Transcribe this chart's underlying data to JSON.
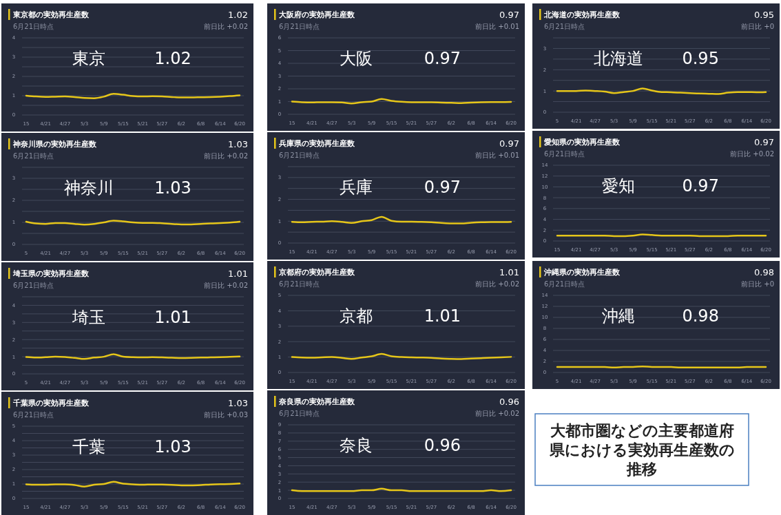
{
  "chart_data": [
    {
      "type": "line",
      "title": "東京都の実効再生産数",
      "subtitle": "6月21日時点",
      "annotations": [
        "1.02",
        "前日比 +0.02",
        "東京",
        "1.02"
      ],
      "categories": [
        "15",
        null,
        "4/21",
        null,
        "4/27",
        null,
        "5/3",
        null,
        "5/9",
        null,
        "5/15",
        null,
        "5/21",
        null,
        "5/27",
        null,
        "6/2",
        null,
        "6/8",
        null,
        "6/14",
        null,
        "6/20"
      ],
      "color": "#e6c619",
      "values": [
        1.0,
        0.96,
        0.94,
        0.95,
        0.96,
        0.93,
        0.88,
        0.87,
        0.95,
        1.1,
        1.05,
        0.98,
        0.96,
        0.97,
        0.96,
        0.93,
        0.91,
        0.91,
        0.92,
        0.93,
        0.95,
        0.98,
        1.02
      ],
      "ylim": [
        0,
        4
      ],
      "yticks": [
        0,
        {
          "value": 0.5,
          "label": null
        },
        1,
        {
          "value": 1.5,
          "label": null
        },
        2,
        {
          "value": 2.5,
          "label": null
        },
        3,
        {
          "value": 3.5,
          "label": null
        },
        4
      ],
      "grid": true
    },
    {
      "type": "line",
      "title": "大阪府の実効再生産数",
      "subtitle": "6月21日時点",
      "annotations": [
        "0.97",
        "前日比 +0.01",
        "大阪",
        "0.97"
      ],
      "categories": [
        "15",
        null,
        "4/21",
        null,
        "4/27",
        null,
        "5/3",
        null,
        "5/9",
        null,
        "5/15",
        null,
        "5/21",
        null,
        "5/27",
        null,
        "6/2",
        null,
        "6/8",
        null,
        "6/14",
        null,
        "6/20"
      ],
      "color": "#e6c619",
      "values": [
        1.0,
        0.95,
        0.93,
        0.95,
        0.95,
        0.93,
        0.85,
        0.95,
        1.0,
        1.2,
        1.05,
        0.98,
        0.95,
        0.95,
        0.94,
        0.92,
        0.9,
        0.88,
        0.92,
        0.95,
        0.96,
        0.96,
        0.97
      ],
      "ylim": [
        0,
        6
      ],
      "yticks": [
        0,
        1,
        2,
        3,
        4,
        5,
        6
      ],
      "grid": true
    },
    {
      "type": "line",
      "title": "北海道の実効再生産数",
      "subtitle": "6月21日時点",
      "annotations": [
        "0.95",
        "前日比 +0",
        "北海道",
        "0.95"
      ],
      "categories": [
        "5",
        null,
        "4/21",
        null,
        "4/27",
        null,
        "5/3",
        null,
        "5/9",
        null,
        "5/15",
        null,
        "5/21",
        null,
        "5/27",
        null,
        "6/2",
        null,
        "6/8",
        null,
        "6/14",
        null,
        "6/20"
      ],
      "color": "#e6c619",
      "values": [
        1.0,
        1.0,
        1.0,
        1.02,
        1.0,
        0.97,
        0.9,
        0.95,
        1.0,
        1.12,
        1.02,
        0.95,
        0.94,
        0.92,
        0.9,
        0.88,
        0.87,
        0.86,
        0.92,
        0.95,
        0.95,
        0.94,
        0.95
      ],
      "ylim": [
        0,
        3.5
      ],
      "yticks": [
        0,
        {
          "value": 0.5,
          "label": null
        },
        1,
        {
          "value": 1.5,
          "label": null
        },
        2,
        {
          "value": 2.5,
          "label": null
        },
        3,
        {
          "value": 3.5,
          "label": null
        }
      ],
      "grid": true
    },
    {
      "type": "line",
      "title": "神奈川県の実効再生産数",
      "subtitle": "6月21日時点",
      "annotations": [
        "1.03",
        "前日比 +0.02",
        "神奈川",
        "1.03"
      ],
      "categories": [
        "5",
        null,
        "4/21",
        null,
        "4/27",
        null,
        "5/3",
        null,
        "5/9",
        null,
        "5/15",
        null,
        "5/21",
        null,
        "5/27",
        null,
        "6/2",
        null,
        "6/8",
        null,
        "6/14",
        null,
        "6/20"
      ],
      "color": "#e6c619",
      "values": [
        1.03,
        0.95,
        0.93,
        0.97,
        0.97,
        0.93,
        0.9,
        0.93,
        1.0,
        1.08,
        1.05,
        1.0,
        0.98,
        0.98,
        0.96,
        0.93,
        0.91,
        0.91,
        0.93,
        0.95,
        0.97,
        0.99,
        1.03
      ],
      "ylim": [
        0,
        3.5
      ],
      "yticks": [
        0,
        {
          "value": 0.5,
          "label": null
        },
        1,
        {
          "value": 1.5,
          "label": null
        },
        2,
        {
          "value": 2.5,
          "label": null
        },
        3,
        {
          "value": 3.5,
          "label": null
        }
      ],
      "grid": true
    },
    {
      "type": "line",
      "title": "兵庫県の実効再生産数",
      "subtitle": "6月21日時点",
      "annotations": [
        "0.97",
        "前日比 +0.01",
        "兵庫",
        "0.97"
      ],
      "categories": [
        "15",
        null,
        "4/21",
        null,
        "4/27",
        null,
        "5/3",
        null,
        "5/9",
        null,
        "5/15",
        null,
        "5/21",
        null,
        "5/27",
        null,
        "6/2",
        null,
        "6/8",
        null,
        "6/14",
        null,
        "6/20"
      ],
      "color": "#e6c619",
      "values": [
        0.97,
        0.95,
        0.97,
        0.98,
        1.0,
        0.97,
        0.92,
        1.0,
        1.05,
        1.2,
        1.02,
        0.98,
        0.98,
        0.97,
        0.95,
        0.92,
        0.9,
        0.9,
        0.93,
        0.95,
        0.96,
        0.96,
        0.97
      ],
      "ylim": [
        0,
        3.5
      ],
      "yticks": [
        0,
        {
          "value": 0.5,
          "label": null
        },
        1,
        {
          "value": 1.5,
          "label": null
        },
        2,
        {
          "value": 2.5,
          "label": null
        },
        3,
        {
          "value": 3.5,
          "label": null
        }
      ],
      "grid": true
    },
    {
      "type": "line",
      "title": "愛知県の実効再生産数",
      "subtitle": "6月21日時点",
      "annotations": [
        "0.97",
        "前日比 +0.02",
        "愛知",
        "0.97"
      ],
      "categories": [
        "15",
        null,
        "4/21",
        null,
        "4/27",
        null,
        "5/3",
        null,
        "5/9",
        null,
        "5/15",
        null,
        "5/21",
        null,
        "5/27",
        null,
        "6/2",
        null,
        "6/8",
        null,
        "6/14",
        null,
        "6/20"
      ],
      "color": "#e6c619",
      "values": [
        1.0,
        1.0,
        1.0,
        1.0,
        1.0,
        1.0,
        0.9,
        0.9,
        1.0,
        1.2,
        1.1,
        1.0,
        1.0,
        1.0,
        1.0,
        0.9,
        0.9,
        0.9,
        0.9,
        1.0,
        1.0,
        1.0,
        1.0
      ],
      "ylim": [
        0,
        14
      ],
      "yticks": [
        0,
        2,
        4,
        6,
        8,
        10,
        12,
        14
      ],
      "grid": true
    },
    {
      "type": "line",
      "title": "埼玉県の実効再生産数",
      "subtitle": "6月21日時点",
      "annotations": [
        "1.01",
        "前日比 +0.02",
        "埼玉",
        "1.01"
      ],
      "categories": [
        "5",
        null,
        "4/21",
        null,
        "4/27",
        null,
        "5/3",
        null,
        "5/9",
        null,
        "5/15",
        null,
        "5/21",
        null,
        "5/27",
        null,
        "6/2",
        null,
        "6/8",
        null,
        "6/14",
        null,
        "6/20"
      ],
      "color": "#e6c619",
      "values": [
        0.98,
        0.95,
        0.97,
        1.0,
        0.98,
        0.93,
        0.87,
        0.95,
        1.0,
        1.15,
        1.0,
        0.97,
        0.96,
        0.97,
        0.96,
        0.94,
        0.92,
        0.93,
        0.95,
        0.96,
        0.97,
        0.99,
        1.01
      ],
      "ylim": [
        0,
        4.5
      ],
      "yticks": [
        0,
        {
          "value": 0.5,
          "label": null
        },
        1,
        {
          "value": 1.5,
          "label": null
        },
        2,
        {
          "value": 2.5,
          "label": null
        },
        3,
        {
          "value": 3.5,
          "label": null
        },
        4,
        {
          "value": 4.5,
          "label": null
        }
      ],
      "grid": true
    },
    {
      "type": "line",
      "title": "京都府の実効再生産数",
      "subtitle": "6月21日時点",
      "annotations": [
        "1.01",
        "前日比 +0.02",
        "京都",
        "1.01"
      ],
      "categories": [
        "15",
        null,
        "4/21",
        null,
        "4/27",
        null,
        "5/3",
        null,
        "5/9",
        null,
        "5/15",
        null,
        "5/21",
        null,
        "5/27",
        null,
        "6/2",
        null,
        "6/8",
        null,
        "6/14",
        null,
        "6/20"
      ],
      "color": "#e6c619",
      "values": [
        1.0,
        0.97,
        0.96,
        0.98,
        1.0,
        0.95,
        0.88,
        0.97,
        1.05,
        1.2,
        1.05,
        1.0,
        0.98,
        0.97,
        0.95,
        0.9,
        0.88,
        0.87,
        0.9,
        0.93,
        0.96,
        0.98,
        1.01
      ],
      "ylim": [
        0,
        5
      ],
      "yticks": [
        0,
        1,
        2,
        3,
        4,
        5
      ],
      "grid": true
    },
    {
      "type": "line",
      "title": "沖縄県の実効再生産数",
      "subtitle": "6月21日時点",
      "annotations": [
        "0.98",
        "前日比 +0",
        "沖縄",
        "0.98"
      ],
      "categories": [
        "5",
        null,
        "4/21",
        null,
        "4/27",
        null,
        "5/3",
        null,
        "5/9",
        null,
        "5/15",
        null,
        "5/21",
        null,
        "5/27",
        null,
        "6/2",
        null,
        "6/8",
        null,
        "6/14",
        null,
        "6/20"
      ],
      "color": "#e6c619",
      "values": [
        1.0,
        1.0,
        1.0,
        1.0,
        1.0,
        1.0,
        0.9,
        1.0,
        1.0,
        1.1,
        1.0,
        1.0,
        1.0,
        0.9,
        0.9,
        0.9,
        0.9,
        0.9,
        0.9,
        0.9,
        1.0,
        1.0,
        1.0
      ],
      "ylim": [
        0,
        14
      ],
      "yticks": [
        0,
        2,
        4,
        6,
        8,
        10,
        12,
        14
      ],
      "grid": true
    },
    {
      "type": "line",
      "title": "千葉県の実効再生産数",
      "subtitle": "6月21日時点",
      "annotations": [
        "1.03",
        "前日比 +0.03",
        "千葉",
        "1.03"
      ],
      "categories": [
        "15",
        null,
        "4/21",
        null,
        "4/27",
        null,
        "5/3",
        null,
        "5/9",
        null,
        "5/15",
        null,
        "5/21",
        null,
        "5/27",
        null,
        "6/2",
        null,
        "6/8",
        null,
        "6/14",
        null,
        "6/20"
      ],
      "color": "#e6c619",
      "values": [
        0.98,
        0.95,
        0.95,
        0.98,
        0.98,
        0.93,
        0.82,
        0.95,
        1.0,
        1.15,
        1.02,
        0.98,
        0.95,
        0.97,
        0.96,
        0.94,
        0.91,
        0.91,
        0.93,
        0.97,
        0.99,
        1.0,
        1.03
      ],
      "ylim": [
        0,
        5
      ],
      "yticks": [
        0,
        {
          "value": 0.5,
          "label": null
        },
        1,
        {
          "value": 1.5,
          "label": null
        },
        2,
        {
          "value": 2.5,
          "label": null
        },
        3,
        {
          "value": 3.5,
          "label": null
        },
        4,
        {
          "value": 4.5,
          "label": null
        },
        5
      ],
      "grid": true
    },
    {
      "type": "line",
      "title": "奈良県の実効再生産数",
      "subtitle": "6月21日時点",
      "annotations": [
        "0.96",
        "前日比 +0.02",
        "奈良",
        "0.96"
      ],
      "categories": [
        "15",
        null,
        "4/21",
        null,
        "4/27",
        null,
        "5/3",
        null,
        "5/9",
        null,
        "5/15",
        null,
        "5/21",
        null,
        "5/27",
        null,
        "6/2",
        null,
        "6/8",
        null,
        "6/14",
        null,
        "6/20"
      ],
      "color": "#e6c619",
      "values": [
        1.0,
        0.9,
        0.9,
        0.9,
        0.9,
        0.9,
        0.9,
        1.0,
        1.0,
        1.2,
        1.0,
        1.0,
        0.9,
        0.9,
        0.9,
        0.9,
        0.9,
        0.9,
        0.9,
        0.9,
        1.0,
        0.9,
        1.0
      ],
      "ylim": [
        0,
        9
      ],
      "yticks": [
        0,
        1,
        2,
        3,
        4,
        5,
        6,
        7,
        8,
        9
      ],
      "grid": true
    },
    {
      "type": "other",
      "title": "大都市圏などの主要都道府県における実効再生産数の推移"
    }
  ]
}
